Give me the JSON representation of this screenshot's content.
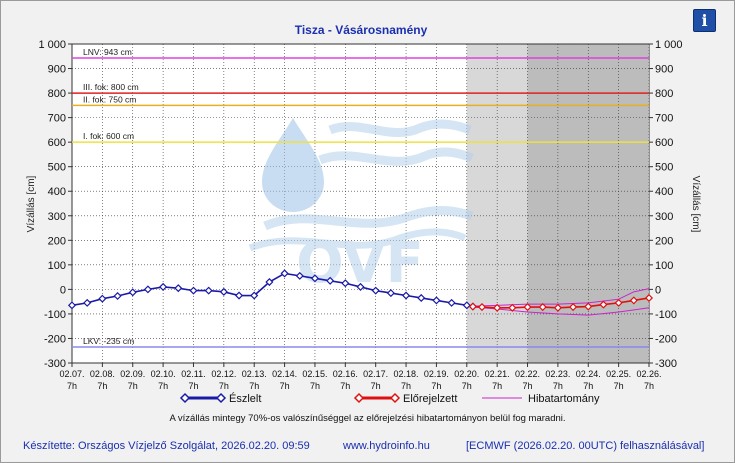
{
  "info_icon": {
    "glyph": "i",
    "icon": "info-icon"
  },
  "watermark": {
    "text": "OVF"
  },
  "chart_data": {
    "type": "line",
    "title": "Tisza - Vásárosnamény",
    "ylabel": "Vízállás [cm]",
    "ylabel_right": "Vízállás [cm]",
    "ylim": [
      -300,
      1000
    ],
    "yticks": [
      -300,
      -200,
      -100,
      0,
      100,
      200,
      300,
      400,
      500,
      600,
      700,
      800,
      900,
      1000
    ],
    "ytick_labels": [
      "-300",
      "-200",
      "-100",
      "0",
      "100",
      "200",
      "300",
      "400",
      "500",
      "600",
      "700",
      "800",
      "900",
      "1 000"
    ],
    "xlim": [
      "02.07. 7h",
      "02.26. 7h"
    ],
    "xticks": [
      {
        "date": "02.07.",
        "hour": "7h"
      },
      {
        "date": "02.08.",
        "hour": "7h"
      },
      {
        "date": "02.09.",
        "hour": "7h"
      },
      {
        "date": "02.10.",
        "hour": "7h"
      },
      {
        "date": "02.11.",
        "hour": "7h"
      },
      {
        "date": "02.12.",
        "hour": "7h"
      },
      {
        "date": "02.13.",
        "hour": "7h"
      },
      {
        "date": "02.14.",
        "hour": "7h"
      },
      {
        "date": "02.15.",
        "hour": "7h"
      },
      {
        "date": "02.16.",
        "hour": "7h"
      },
      {
        "date": "02.17.",
        "hour": "7h"
      },
      {
        "date": "02.18.",
        "hour": "7h"
      },
      {
        "date": "02.19.",
        "hour": "7h"
      },
      {
        "date": "02.20.",
        "hour": "7h"
      },
      {
        "date": "02.21.",
        "hour": "7h"
      },
      {
        "date": "02.22.",
        "hour": "7h"
      },
      {
        "date": "02.23.",
        "hour": "7h"
      },
      {
        "date": "02.24.",
        "hour": "7h"
      },
      {
        "date": "02.25.",
        "hour": "7h"
      },
      {
        "date": "02.26.",
        "hour": "7h"
      }
    ],
    "grid": true,
    "forecast_regions": [
      {
        "from": "02.20. 7h",
        "to": "02.22. 7h",
        "color": "#d8d8d8"
      },
      {
        "from": "02.22. 7h",
        "to": "02.26. 7h",
        "color": "#bcbcbc"
      }
    ],
    "thresholds": [
      {
        "label": "LNV: 943 cm",
        "value": 943,
        "color": "#dd44dd"
      },
      {
        "label": "III. fok: 800 cm",
        "value": 800,
        "color": "#e02020"
      },
      {
        "label": "II. fok: 750 cm",
        "value": 750,
        "color": "#e8b020"
      },
      {
        "label": "I. fok: 600 cm",
        "value": 600,
        "color": "#f0e040"
      },
      {
        "label": "LKV: -235 cm",
        "value": -235,
        "color": "#8888ee"
      }
    ],
    "series": [
      {
        "name": "Észlelt",
        "color": "#1a1aa8",
        "marker": "diamond",
        "x": [
          0,
          0.5,
          1,
          1.5,
          2,
          2.5,
          3,
          3.5,
          4,
          4.5,
          5,
          5.5,
          6,
          6.5,
          7,
          7.5,
          8,
          8.5,
          9,
          9.5,
          10,
          10.5,
          11,
          11.5,
          12,
          12.5,
          13,
          13.2
        ],
        "y": [
          -65,
          -55,
          -38,
          -27,
          -12,
          0,
          10,
          5,
          -5,
          -5,
          -10,
          -25,
          -25,
          30,
          65,
          55,
          45,
          35,
          25,
          10,
          -5,
          -15,
          -25,
          -35,
          -45,
          -55,
          -65,
          -70
        ]
      },
      {
        "name": "Előrejelzett",
        "color": "#e01010",
        "marker": "diamond",
        "x": [
          13.2,
          13.5,
          14,
          14.5,
          15,
          15.5,
          16,
          16.5,
          17,
          17.5,
          18,
          18.5,
          19
        ],
        "y": [
          -70,
          -72,
          -75,
          -75,
          -72,
          -72,
          -75,
          -72,
          -70,
          -62,
          -55,
          -45,
          -35
        ]
      },
      {
        "name": "Hibatartomány",
        "color": "#cc22cc",
        "marker": "none",
        "upper": {
          "x": [
            13.2,
            14,
            15,
            16,
            17,
            18,
            18.5,
            19
          ],
          "y": [
            -68,
            -65,
            -60,
            -60,
            -55,
            -40,
            -10,
            3
          ]
        },
        "lower": {
          "x": [
            13.2,
            14,
            15,
            16,
            17,
            18,
            19
          ],
          "y": [
            -72,
            -80,
            -92,
            -100,
            -105,
            -92,
            -75
          ]
        }
      }
    ],
    "legend": {
      "placement": "bottom"
    },
    "note": "A vízállás mintegy 70%-os valószínűséggel az előrejelzési hibatartományon belül fog maradni."
  },
  "footer": {
    "author": "Készítette: Országos Vízjelző Szolgálat, 2026.02.20. 09:59",
    "url": "www.hydroinfo.hu",
    "model": "[ECMWF (2026.02.20. 00UTC) felhasználásával]"
  }
}
